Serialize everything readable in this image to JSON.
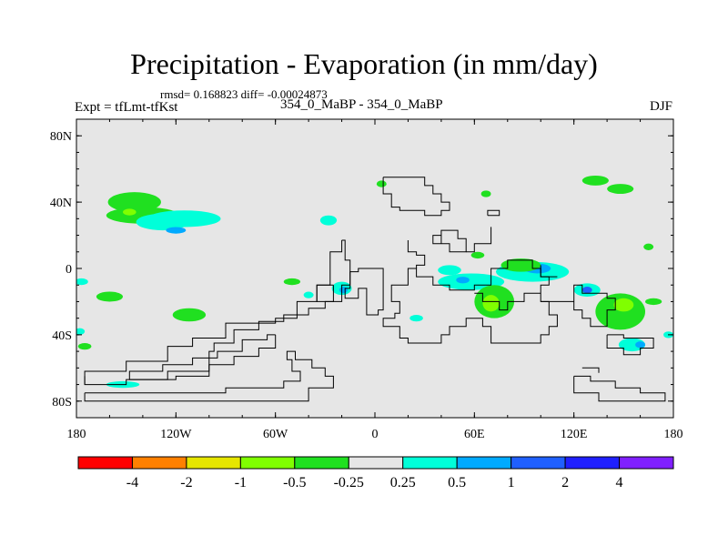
{
  "chart_data": {
    "type": "contour_map",
    "title": "Precipitation - Evaporation (in mm/day)",
    "stats_label": "rmsd= 0.168823 diff= -0.00024873",
    "left_label": "Expt = tfLmt-tfKst",
    "center_label": "354_0_MaBP - 354_0_MaBP",
    "right_label": "DJF",
    "xlim": [
      -180,
      180
    ],
    "ylim": [
      -90,
      90
    ],
    "x_ticks": [
      {
        "value": -180,
        "label": "180"
      },
      {
        "value": -120,
        "label": "120W"
      },
      {
        "value": -60,
        "label": "60W"
      },
      {
        "value": 0,
        "label": "0"
      },
      {
        "value": 60,
        "label": "60E"
      },
      {
        "value": 120,
        "label": "120E"
      },
      {
        "value": 180,
        "label": "180"
      }
    ],
    "y_ticks": [
      {
        "value": 80,
        "label": "80N"
      },
      {
        "value": 40,
        "label": "40N"
      },
      {
        "value": 0,
        "label": "0"
      },
      {
        "value": -40,
        "label": "40S"
      },
      {
        "value": -80,
        "label": "80S"
      }
    ],
    "colorbar": {
      "colors": [
        "#ff0000",
        "#ff8000",
        "#e6e600",
        "#80ff00",
        "#20e020",
        "#e6e6e6",
        "#00ffd9",
        "#00aaff",
        "#2060ff",
        "#2020ff",
        "#8020ff"
      ],
      "labels": [
        "-4",
        "-2",
        "-1",
        "-0.5",
        "-0.25",
        "0.25",
        "0.5",
        "1",
        "2",
        "4"
      ]
    },
    "background_color": "#e6e6e6",
    "land_outline_color": "#000000",
    "blobs": [
      {
        "lon": -145,
        "lat": 40,
        "rx": 16,
        "ry": 6,
        "level": 4
      },
      {
        "lon": -140,
        "lat": 32,
        "rx": 22,
        "ry": 5,
        "level": 4
      },
      {
        "lon": -148,
        "lat": 34,
        "rx": 4,
        "ry": 2,
        "level": 3
      },
      {
        "lon": -128,
        "lat": 28,
        "rx": 16,
        "ry": 5,
        "level": 6
      },
      {
        "lon": -115,
        "lat": 30,
        "rx": 22,
        "ry": 5,
        "level": 6
      },
      {
        "lon": -120,
        "lat": 23,
        "rx": 6,
        "ry": 2,
        "level": 7
      },
      {
        "lon": -160,
        "lat": -17,
        "rx": 8,
        "ry": 3,
        "level": 4
      },
      {
        "lon": -112,
        "lat": -28,
        "rx": 10,
        "ry": 4,
        "level": 4
      },
      {
        "lon": -175,
        "lat": -47,
        "rx": 4,
        "ry": 2,
        "level": 4
      },
      {
        "lon": -177,
        "lat": -8,
        "rx": 4,
        "ry": 2,
        "level": 6
      },
      {
        "lon": -178,
        "lat": -38,
        "rx": 3,
        "ry": 2,
        "level": 6
      },
      {
        "lon": -152,
        "lat": -70,
        "rx": 10,
        "ry": 2,
        "level": 6
      },
      {
        "lon": -28,
        "lat": 29,
        "rx": 5,
        "ry": 3,
        "level": 6
      },
      {
        "lon": -50,
        "lat": -8,
        "rx": 5,
        "ry": 2,
        "level": 4
      },
      {
        "lon": -20,
        "lat": -12,
        "rx": 6,
        "ry": 4,
        "level": 6
      },
      {
        "lon": -19,
        "lat": -13,
        "rx": 2.5,
        "ry": 2,
        "level": 7
      },
      {
        "lon": -40,
        "lat": -16,
        "rx": 3,
        "ry": 2,
        "level": 6
      },
      {
        "lon": 4,
        "lat": 51,
        "rx": 3,
        "ry": 2,
        "level": 4
      },
      {
        "lon": 45,
        "lat": -1,
        "rx": 7,
        "ry": 3,
        "level": 6
      },
      {
        "lon": 58,
        "lat": -8,
        "rx": 20,
        "ry": 5,
        "level": 6
      },
      {
        "lon": 53,
        "lat": -7,
        "rx": 4,
        "ry": 2,
        "level": 7
      },
      {
        "lon": 72,
        "lat": -20,
        "rx": 12,
        "ry": 10,
        "level": 4
      },
      {
        "lon": 70,
        "lat": -21,
        "rx": 5,
        "ry": 5,
        "level": 3
      },
      {
        "lon": 95,
        "lat": -2,
        "rx": 22,
        "ry": 6,
        "level": 6
      },
      {
        "lon": 98,
        "lat": 0,
        "rx": 8,
        "ry": 3,
        "level": 7
      },
      {
        "lon": 88,
        "lat": 2,
        "rx": 12,
        "ry": 4,
        "level": 4
      },
      {
        "lon": 128,
        "lat": -13,
        "rx": 8,
        "ry": 4,
        "level": 6
      },
      {
        "lon": 128,
        "lat": -13,
        "rx": 3,
        "ry": 2,
        "level": 8
      },
      {
        "lon": 148,
        "lat": -26,
        "rx": 15,
        "ry": 11,
        "level": 4
      },
      {
        "lon": 150,
        "lat": -22,
        "rx": 6,
        "ry": 4,
        "level": 3
      },
      {
        "lon": 155,
        "lat": -46,
        "rx": 8,
        "ry": 4,
        "level": 6
      },
      {
        "lon": 160,
        "lat": -46,
        "rx": 3,
        "ry": 2,
        "level": 7
      },
      {
        "lon": 133,
        "lat": 53,
        "rx": 8,
        "ry": 3,
        "level": 4
      },
      {
        "lon": 148,
        "lat": 48,
        "rx": 8,
        "ry": 3,
        "level": 4
      },
      {
        "lon": 67,
        "lat": 45,
        "rx": 3,
        "ry": 2,
        "level": 4
      },
      {
        "lon": 62,
        "lat": 8,
        "rx": 4,
        "ry": 2,
        "level": 4
      },
      {
        "lon": 25,
        "lat": -30,
        "rx": 4,
        "ry": 2,
        "level": 6
      },
      {
        "lon": 168,
        "lat": -20,
        "rx": 5,
        "ry": 2,
        "level": 4
      },
      {
        "lon": 165,
        "lat": 13,
        "rx": 3,
        "ry": 2,
        "level": 4
      },
      {
        "lon": 177,
        "lat": -40,
        "rx": 3,
        "ry": 2,
        "level": 6
      }
    ],
    "land_outlines": [
      [
        [
          -20,
          17
        ],
        [
          -20,
          10
        ],
        [
          -27,
          10
        ],
        [
          -27,
          -10
        ],
        [
          -35,
          -10
        ],
        [
          -35,
          -20
        ],
        [
          -47,
          -20
        ],
        [
          -47,
          -30
        ],
        [
          -60,
          -30
        ],
        [
          -60,
          -33
        ],
        [
          -90,
          -33
        ],
        [
          -90,
          -42
        ],
        [
          -110,
          -42
        ],
        [
          -110,
          -47
        ],
        [
          -125,
          -47
        ],
        [
          -125,
          -56
        ],
        [
          -150,
          -56
        ],
        [
          -150,
          -62
        ],
        [
          -175,
          -62
        ],
        [
          -175,
          -70
        ],
        [
          -150,
          -70
        ],
        [
          -150,
          -67
        ],
        [
          -120,
          -67
        ],
        [
          -120,
          -65
        ],
        [
          -100,
          -65
        ],
        [
          -100,
          -50
        ],
        [
          -97,
          -50
        ],
        [
          -97,
          -45
        ],
        [
          -85,
          -45
        ],
        [
          -85,
          -37
        ],
        [
          -70,
          -37
        ],
        [
          -70,
          -32
        ],
        [
          -55,
          -32
        ],
        [
          -55,
          -28
        ],
        [
          -40,
          -28
        ],
        [
          -40,
          -24
        ],
        [
          -30,
          -24
        ],
        [
          -30,
          -20
        ],
        [
          -20,
          -20
        ],
        [
          -20,
          -10
        ],
        [
          -15,
          -10
        ],
        [
          -15,
          5
        ],
        [
          -18,
          5
        ],
        [
          -18,
          17
        ],
        [
          -20,
          17
        ]
      ],
      [
        [
          -60,
          -40
        ],
        [
          -60,
          -48
        ],
        [
          -70,
          -48
        ],
        [
          -70,
          -53
        ],
        [
          -85,
          -53
        ],
        [
          -85,
          -58
        ],
        [
          -100,
          -58
        ],
        [
          -100,
          -62
        ],
        [
          -125,
          -62
        ],
        [
          -125,
          -67
        ],
        [
          -148,
          -67
        ],
        [
          -148,
          -62
        ],
        [
          -128,
          -62
        ],
        [
          -128,
          -58
        ],
        [
          -110,
          -58
        ],
        [
          -110,
          -54
        ],
        [
          -95,
          -54
        ],
        [
          -95,
          -50
        ],
        [
          -80,
          -50
        ],
        [
          -80,
          -43
        ],
        [
          -65,
          -43
        ],
        [
          -65,
          -40
        ],
        [
          -60,
          -40
        ]
      ],
      [
        [
          -175,
          -75
        ],
        [
          -175,
          -80
        ],
        [
          -40,
          -80
        ],
        [
          -40,
          -72
        ],
        [
          -25,
          -72
        ],
        [
          -25,
          -65
        ],
        [
          -30,
          -65
        ],
        [
          -30,
          -60
        ],
        [
          -38,
          -60
        ],
        [
          -38,
          -55
        ],
        [
          -48,
          -55
        ],
        [
          -48,
          -50
        ],
        [
          -53,
          -50
        ],
        [
          -53,
          -55
        ],
        [
          -50,
          -55
        ],
        [
          -50,
          -62
        ],
        [
          -45,
          -62
        ],
        [
          -45,
          -68
        ],
        [
          -55,
          -68
        ],
        [
          -55,
          -72
        ],
        [
          -90,
          -72
        ],
        [
          -90,
          -75
        ],
        [
          -175,
          -75
        ]
      ],
      [
        [
          -175,
          -65
        ],
        [
          -175,
          -70
        ]
      ],
      [
        [
          -25,
          -10
        ],
        [
          -35,
          -10
        ],
        [
          -35,
          -20
        ],
        [
          -25,
          -20
        ],
        [
          -25,
          -10
        ]
      ],
      [
        [
          5,
          -10
        ],
        [
          5,
          -25
        ],
        [
          2,
          -25
        ],
        [
          2,
          -28
        ],
        [
          -5,
          -28
        ],
        [
          -5,
          -12
        ],
        [
          -10,
          -12
        ],
        [
          -10,
          -18
        ],
        [
          -18,
          -18
        ],
        [
          -18,
          -12
        ],
        [
          -15,
          -12
        ],
        [
          -15,
          -2
        ],
        [
          -10,
          -2
        ],
        [
          -10,
          0
        ],
        [
          5,
          0
        ],
        [
          5,
          -10
        ]
      ],
      [
        [
          10,
          -13
        ],
        [
          10,
          -20
        ],
        [
          15,
          -20
        ],
        [
          15,
          -27
        ],
        [
          12,
          -27
        ],
        [
          12,
          -30
        ],
        [
          5,
          -30
        ],
        [
          5,
          -35
        ],
        [
          15,
          -35
        ],
        [
          15,
          -42
        ],
        [
          20,
          -42
        ],
        [
          20,
          -45
        ],
        [
          40,
          -45
        ],
        [
          40,
          -40
        ],
        [
          45,
          -40
        ],
        [
          45,
          -35
        ],
        [
          55,
          -35
        ],
        [
          55,
          -30
        ],
        [
          65,
          -30
        ],
        [
          65,
          -35
        ],
        [
          70,
          -35
        ],
        [
          70,
          -45
        ],
        [
          100,
          -45
        ],
        [
          100,
          -40
        ],
        [
          105,
          -40
        ],
        [
          105,
          -35
        ],
        [
          110,
          -35
        ],
        [
          110,
          -28
        ],
        [
          105,
          -28
        ],
        [
          105,
          -20
        ],
        [
          100,
          -20
        ],
        [
          100,
          -10
        ],
        [
          105,
          -10
        ],
        [
          105,
          -5
        ],
        [
          100,
          -5
        ],
        [
          100,
          0
        ],
        [
          95,
          0
        ],
        [
          95,
          5
        ],
        [
          80,
          5
        ],
        [
          80,
          0
        ],
        [
          70,
          0
        ],
        [
          70,
          -10
        ],
        [
          60,
          -10
        ],
        [
          60,
          -13
        ],
        [
          45,
          -13
        ],
        [
          45,
          -10
        ],
        [
          35,
          -10
        ],
        [
          35,
          -5
        ],
        [
          25,
          -5
        ],
        [
          25,
          0
        ],
        [
          20,
          0
        ],
        [
          20,
          -10
        ],
        [
          10,
          -10
        ],
        [
          10,
          -13
        ]
      ],
      [
        [
          5,
          55
        ],
        [
          5,
          45
        ],
        [
          10,
          45
        ],
        [
          10,
          37
        ],
        [
          15,
          37
        ],
        [
          15,
          35
        ],
        [
          30,
          35
        ],
        [
          30,
          32
        ],
        [
          40,
          32
        ],
        [
          40,
          35
        ],
        [
          45,
          35
        ],
        [
          45,
          40
        ],
        [
          40,
          40
        ],
        [
          40,
          45
        ],
        [
          35,
          45
        ],
        [
          35,
          50
        ],
        [
          30,
          50
        ],
        [
          30,
          55
        ],
        [
          5,
          55
        ]
      ],
      [
        [
          40,
          23
        ],
        [
          40,
          15
        ],
        [
          35,
          15
        ],
        [
          35,
          20
        ],
        [
          40,
          20
        ],
        [
          40,
          23
        ],
        [
          50,
          23
        ],
        [
          50,
          18
        ],
        [
          55,
          18
        ],
        [
          55,
          10
        ],
        [
          45,
          10
        ],
        [
          45,
          15
        ],
        [
          40,
          15
        ]
      ],
      [
        [
          20,
          17
        ],
        [
          20,
          10
        ],
        [
          25,
          10
        ],
        [
          25,
          8
        ],
        [
          30,
          8
        ],
        [
          30,
          2
        ],
        [
          25,
          2
        ],
        [
          25,
          0
        ]
      ],
      [
        [
          60,
          -15
        ],
        [
          65,
          -15
        ],
        [
          65,
          -20
        ],
        [
          75,
          -20
        ],
        [
          75,
          -25
        ],
        [
          80,
          -25
        ],
        [
          80,
          -20
        ],
        [
          90,
          -20
        ],
        [
          90,
          -15
        ],
        [
          100,
          -15
        ]
      ],
      [
        [
          100,
          -20
        ],
        [
          120,
          -20
        ],
        [
          120,
          -25
        ],
        [
          125,
          -25
        ],
        [
          125,
          -30
        ],
        [
          130,
          -30
        ],
        [
          130,
          -35
        ],
        [
          140,
          -35
        ],
        [
          140,
          -25
        ],
        [
          145,
          -25
        ],
        [
          145,
          -18
        ],
        [
          140,
          -18
        ],
        [
          140,
          -15
        ],
        [
          125,
          -15
        ],
        [
          125,
          -10
        ],
        [
          120,
          -10
        ],
        [
          120,
          -20
        ]
      ],
      [
        [
          140,
          -40
        ],
        [
          140,
          -48
        ],
        [
          150,
          -48
        ],
        [
          150,
          -52
        ],
        [
          160,
          -52
        ],
        [
          160,
          -48
        ],
        [
          168,
          -48
        ],
        [
          168,
          -42
        ],
        [
          150,
          -42
        ],
        [
          150,
          -40
        ],
        [
          140,
          -40
        ]
      ],
      [
        [
          120,
          -65
        ],
        [
          120,
          -75
        ],
        [
          135,
          -75
        ],
        [
          135,
          -80
        ],
        [
          175,
          -80
        ],
        [
          175,
          -75
        ],
        [
          160,
          -75
        ],
        [
          160,
          -72
        ],
        [
          145,
          -72
        ],
        [
          145,
          -68
        ],
        [
          130,
          -68
        ],
        [
          130,
          -65
        ],
        [
          120,
          -65
        ]
      ],
      [
        [
          125,
          -60
        ],
        [
          135,
          -60
        ],
        [
          135,
          -63
        ]
      ],
      [
        [
          70,
          25
        ],
        [
          70,
          15
        ],
        [
          60,
          15
        ],
        [
          60,
          10
        ],
        [
          55,
          10
        ]
      ],
      [
        [
          68,
          32
        ],
        [
          75,
          32
        ],
        [
          75,
          35
        ],
        [
          68,
          35
        ],
        [
          68,
          32
        ]
      ],
      [
        [
          100,
          2
        ],
        [
          100,
          -5
        ],
        [
          110,
          -5
        ]
      ]
    ]
  }
}
